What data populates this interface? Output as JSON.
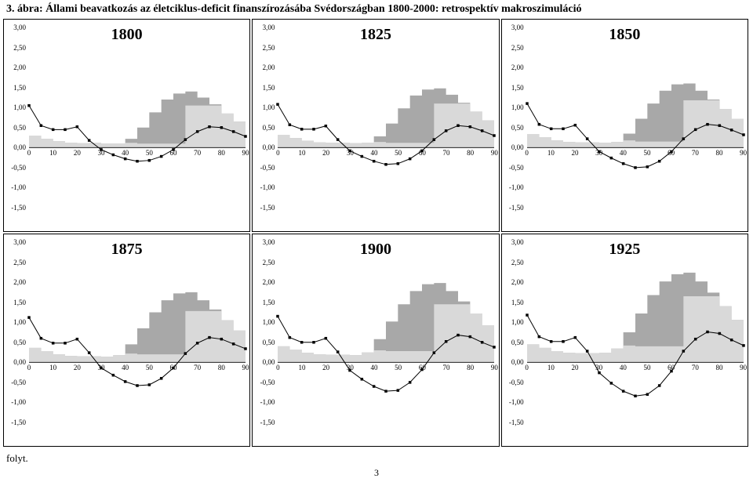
{
  "page_number": "3",
  "title": "3. ábra: Állami beavatkozás az életciklus-deficit finanszírozásába Svédországban 1800-2000: retrospektív makroszimuláció",
  "folyt": "folyt.",
  "common": {
    "ylim": [
      -1.5,
      3.0
    ],
    "xlim": [
      0,
      90
    ],
    "yticks": [
      "3,00",
      "2,50",
      "2,00",
      "1,50",
      "1,00",
      "0,50",
      "0,00",
      "-0,50",
      "-1,00",
      "-1,50"
    ],
    "ytick_vals": [
      3.0,
      2.5,
      2.0,
      1.5,
      1.0,
      0.5,
      0.0,
      -0.5,
      -1.0,
      -1.5
    ],
    "xticks": [
      "0",
      "10",
      "20",
      "30",
      "40",
      "50",
      "60",
      "70",
      "80",
      "90"
    ],
    "xtick_vals": [
      0,
      10,
      20,
      30,
      40,
      50,
      60,
      70,
      80,
      90
    ],
    "colors": {
      "band_dark": "#a8a8a8",
      "band_light": "#d9d9d9",
      "line": "#000000",
      "bg": "#ffffff",
      "marker": "#000000"
    },
    "marker_size": 3.5,
    "line_width": 1
  },
  "panels": [
    {
      "year": "1800",
      "dark_top": [
        0.3,
        0.22,
        0.16,
        0.12,
        0.11,
        0.12,
        0.1,
        0.1,
        0.22,
        0.5,
        0.88,
        1.2,
        1.35,
        1.4,
        1.25,
        1.08,
        0.85,
        0.65,
        0.5
      ],
      "light_top": [
        0.3,
        0.22,
        0.16,
        0.12,
        0.11,
        0.12,
        0.1,
        0.1,
        0.12,
        0.1,
        0.1,
        0.1,
        0.1,
        1.05,
        1.05,
        1.05,
        0.85,
        0.65,
        0.5
      ],
      "line": [
        1.05,
        0.55,
        0.45,
        0.45,
        0.52,
        0.18,
        -0.05,
        -0.18,
        -0.28,
        -0.34,
        -0.32,
        -0.22,
        -0.05,
        0.2,
        0.4,
        0.52,
        0.5,
        0.4,
        0.28
      ]
    },
    {
      "year": "1825",
      "dark_top": [
        0.32,
        0.24,
        0.17,
        0.13,
        0.12,
        0.12,
        0.11,
        0.12,
        0.28,
        0.6,
        0.98,
        1.3,
        1.45,
        1.48,
        1.32,
        1.12,
        0.9,
        0.68,
        0.52
      ],
      "light_top": [
        0.32,
        0.24,
        0.17,
        0.13,
        0.12,
        0.12,
        0.11,
        0.12,
        0.14,
        0.12,
        0.12,
        0.12,
        0.12,
        1.1,
        1.1,
        1.1,
        0.9,
        0.68,
        0.52
      ],
      "line": [
        1.08,
        0.57,
        0.46,
        0.46,
        0.54,
        0.2,
        -0.08,
        -0.22,
        -0.34,
        -0.42,
        -0.4,
        -0.28,
        -0.08,
        0.2,
        0.42,
        0.55,
        0.52,
        0.42,
        0.3
      ]
    },
    {
      "year": "1850",
      "dark_top": [
        0.34,
        0.26,
        0.18,
        0.14,
        0.13,
        0.13,
        0.12,
        0.14,
        0.35,
        0.72,
        1.1,
        1.42,
        1.58,
        1.6,
        1.42,
        1.2,
        0.96,
        0.72,
        0.55
      ],
      "light_top": [
        0.34,
        0.26,
        0.18,
        0.14,
        0.13,
        0.13,
        0.12,
        0.14,
        0.18,
        0.15,
        0.15,
        0.15,
        0.15,
        1.18,
        1.18,
        1.18,
        0.96,
        0.72,
        0.55
      ],
      "line": [
        1.1,
        0.58,
        0.47,
        0.47,
        0.56,
        0.22,
        -0.1,
        -0.26,
        -0.4,
        -0.5,
        -0.48,
        -0.34,
        -0.1,
        0.22,
        0.45,
        0.58,
        0.55,
        0.44,
        0.32
      ]
    },
    {
      "year": "1875",
      "dark_top": [
        0.36,
        0.28,
        0.2,
        0.16,
        0.15,
        0.15,
        0.14,
        0.18,
        0.45,
        0.85,
        1.25,
        1.55,
        1.72,
        1.75,
        1.55,
        1.32,
        1.05,
        0.8,
        0.6
      ],
      "light_top": [
        0.36,
        0.28,
        0.2,
        0.16,
        0.15,
        0.15,
        0.14,
        0.18,
        0.22,
        0.2,
        0.2,
        0.2,
        0.2,
        1.28,
        1.28,
        1.28,
        1.05,
        0.8,
        0.6
      ],
      "line": [
        1.12,
        0.6,
        0.48,
        0.48,
        0.58,
        0.24,
        -0.14,
        -0.32,
        -0.48,
        -0.58,
        -0.56,
        -0.4,
        -0.14,
        0.22,
        0.48,
        0.62,
        0.58,
        0.46,
        0.34
      ]
    },
    {
      "year": "1900",
      "dark_top": [
        0.4,
        0.32,
        0.24,
        0.2,
        0.19,
        0.19,
        0.18,
        0.25,
        0.58,
        1.02,
        1.45,
        1.78,
        1.95,
        1.98,
        1.78,
        1.52,
        1.22,
        0.92,
        0.7
      ],
      "light_top": [
        0.4,
        0.32,
        0.24,
        0.2,
        0.19,
        0.19,
        0.18,
        0.25,
        0.3,
        0.28,
        0.28,
        0.28,
        0.28,
        1.45,
        1.45,
        1.45,
        1.22,
        0.92,
        0.7
      ],
      "line": [
        1.15,
        0.62,
        0.5,
        0.5,
        0.6,
        0.26,
        -0.2,
        -0.42,
        -0.6,
        -0.72,
        -0.7,
        -0.5,
        -0.18,
        0.24,
        0.52,
        0.68,
        0.64,
        0.5,
        0.38
      ]
    },
    {
      "year": "1925",
      "dark_top": [
        0.45,
        0.36,
        0.28,
        0.24,
        0.23,
        0.23,
        0.24,
        0.35,
        0.75,
        1.22,
        1.68,
        2.02,
        2.2,
        2.24,
        2.02,
        1.74,
        1.4,
        1.06,
        0.82
      ],
      "light_top": [
        0.45,
        0.36,
        0.28,
        0.24,
        0.23,
        0.23,
        0.24,
        0.35,
        0.42,
        0.4,
        0.4,
        0.4,
        0.4,
        1.65,
        1.65,
        1.65,
        1.4,
        1.06,
        0.82
      ],
      "line": [
        1.18,
        0.64,
        0.52,
        0.52,
        0.62,
        0.28,
        -0.26,
        -0.52,
        -0.72,
        -0.84,
        -0.8,
        -0.58,
        -0.22,
        0.28,
        0.58,
        0.76,
        0.72,
        0.56,
        0.42
      ]
    }
  ]
}
